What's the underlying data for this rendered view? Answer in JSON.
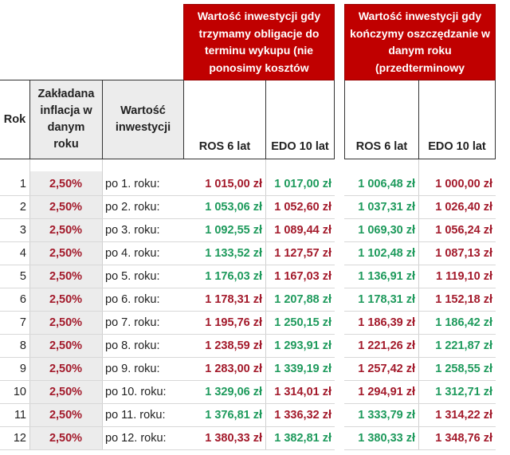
{
  "header": {
    "group1": "Wartość inwestycji gdy trzymamy obligacje  do terminu wykupu (nie ponosimy kosztów",
    "group2": "Wartość inwestycji gdy kończymy oszczędzanie w danym roku (przedterminowy",
    "col_rok": "Rok",
    "col_inflacja": "Zakładana inflacja w danym roku",
    "col_wartosc": "Wartość inwestycji",
    "col_ros1": "ROS 6 lat",
    "col_edo1": "EDO 10 lat",
    "col_ros2": "ROS 6 lat",
    "col_edo2": "EDO 10 lat"
  },
  "colors": {
    "header_bg": "#c00000",
    "red": "#a31a2b",
    "green": "#1e9a5c"
  },
  "rows": [
    {
      "rok": "1",
      "inflacja": "2,50%",
      "label": "po 1. roku:",
      "values": [
        {
          "v": "1 015,00 zł",
          "c": "red"
        },
        {
          "v": "1 017,00 zł",
          "c": "green"
        },
        {
          "v": "1 006,48 zł",
          "c": "green"
        },
        {
          "v": "1 000,00 zł",
          "c": "red"
        }
      ]
    },
    {
      "rok": "2",
      "inflacja": "2,50%",
      "label": "po 2. roku:",
      "values": [
        {
          "v": "1 053,06 zł",
          "c": "green"
        },
        {
          "v": "1 052,60 zł",
          "c": "red"
        },
        {
          "v": "1 037,31 zł",
          "c": "green"
        },
        {
          "v": "1 026,40 zł",
          "c": "red"
        }
      ]
    },
    {
      "rok": "3",
      "inflacja": "2,50%",
      "label": "po 3. roku:",
      "values": [
        {
          "v": "1 092,55 zł",
          "c": "green"
        },
        {
          "v": "1 089,44 zł",
          "c": "red"
        },
        {
          "v": "1 069,30 zł",
          "c": "green"
        },
        {
          "v": "1 056,24 zł",
          "c": "red"
        }
      ]
    },
    {
      "rok": "4",
      "inflacja": "2,50%",
      "label": "po 4. roku:",
      "values": [
        {
          "v": "1 133,52 zł",
          "c": "green"
        },
        {
          "v": "1 127,57 zł",
          "c": "red"
        },
        {
          "v": "1 102,48 zł",
          "c": "green"
        },
        {
          "v": "1 087,13 zł",
          "c": "red"
        }
      ]
    },
    {
      "rok": "5",
      "inflacja": "2,50%",
      "label": "po 5. roku:",
      "values": [
        {
          "v": "1 176,03 zł",
          "c": "green"
        },
        {
          "v": "1 167,03 zł",
          "c": "red"
        },
        {
          "v": "1 136,91 zł",
          "c": "green"
        },
        {
          "v": "1 119,10 zł",
          "c": "red"
        }
      ]
    },
    {
      "rok": "6",
      "inflacja": "2,50%",
      "label": "po 6. roku:",
      "values": [
        {
          "v": "1 178,31 zł",
          "c": "red"
        },
        {
          "v": "1 207,88 zł",
          "c": "green"
        },
        {
          "v": "1 178,31 zł",
          "c": "green"
        },
        {
          "v": "1 152,18 zł",
          "c": "red"
        }
      ]
    },
    {
      "rok": "7",
      "inflacja": "2,50%",
      "label": "po 7. roku:",
      "values": [
        {
          "v": "1 195,76 zł",
          "c": "red"
        },
        {
          "v": "1 250,15 zł",
          "c": "green"
        },
        {
          "v": "1 186,39 zł",
          "c": "red"
        },
        {
          "v": "1 186,42 zł",
          "c": "green"
        }
      ]
    },
    {
      "rok": "8",
      "inflacja": "2,50%",
      "label": "po 8. roku:",
      "values": [
        {
          "v": "1 238,59 zł",
          "c": "red"
        },
        {
          "v": "1 293,91 zł",
          "c": "green"
        },
        {
          "v": "1 221,26 zł",
          "c": "red"
        },
        {
          "v": "1 221,87 zł",
          "c": "green"
        }
      ]
    },
    {
      "rok": "9",
      "inflacja": "2,50%",
      "label": "po 9. roku:",
      "values": [
        {
          "v": "1 283,00 zł",
          "c": "red"
        },
        {
          "v": "1 339,19 zł",
          "c": "green"
        },
        {
          "v": "1 257,42 zł",
          "c": "red"
        },
        {
          "v": "1 258,55 zł",
          "c": "green"
        }
      ]
    },
    {
      "rok": "10",
      "inflacja": "2,50%",
      "label": "po 10. roku:",
      "values": [
        {
          "v": "1 329,06 zł",
          "c": "green"
        },
        {
          "v": "1 314,01 zł",
          "c": "red"
        },
        {
          "v": "1 294,91 zł",
          "c": "red"
        },
        {
          "v": "1 312,71 zł",
          "c": "green"
        }
      ]
    },
    {
      "rok": "11",
      "inflacja": "2,50%",
      "label": "po 11. roku:",
      "values": [
        {
          "v": "1 376,81 zł",
          "c": "green"
        },
        {
          "v": "1 336,32 zł",
          "c": "red"
        },
        {
          "v": "1 333,79 zł",
          "c": "green"
        },
        {
          "v": "1 314,22 zł",
          "c": "red"
        }
      ]
    },
    {
      "rok": "12",
      "inflacja": "2,50%",
      "label": "po 12. roku:",
      "values": [
        {
          "v": "1 380,33 zł",
          "c": "red"
        },
        {
          "v": "1 382,81 zł",
          "c": "green"
        },
        {
          "v": "1 380,33 zł",
          "c": "green"
        },
        {
          "v": "1 348,76 zł",
          "c": "red"
        }
      ]
    }
  ]
}
